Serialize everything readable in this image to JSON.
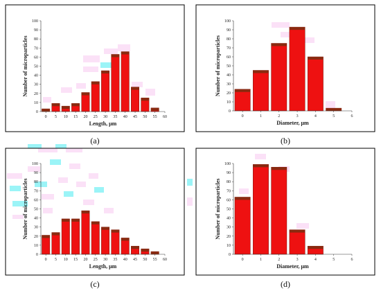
{
  "panel_tags": [
    "(a)",
    "(b)",
    "(c)",
    "(d)"
  ],
  "colors": {
    "bar_fill": "#ee1111",
    "bar_top": "#8a2a10",
    "frame": "#000000",
    "artifact_pink": "#f7c8f0",
    "artifact_cyan": "#22e6ee"
  },
  "chart_data": [
    {
      "type": "bar",
      "title": "",
      "xlabel": "Length, μm",
      "ylabel": "Number of microparticles",
      "x_ticks": [
        "0",
        "5",
        "10",
        "15",
        "20",
        "25",
        "30",
        "35",
        "40",
        "45",
        "50",
        "55",
        "60"
      ],
      "xlim": [
        -2.5,
        60
      ],
      "y_ticks": [
        "0",
        "10",
        "20",
        "30",
        "40",
        "50",
        "60",
        "70",
        "80",
        "90",
        "100"
      ],
      "ylim": [
        0,
        100
      ],
      "bar_width": 4,
      "x": [
        0,
        5,
        10,
        15,
        20,
        25,
        30,
        35,
        40,
        45,
        50,
        55
      ],
      "values": [
        3,
        9,
        6,
        9,
        21,
        33,
        45,
        63,
        66,
        27,
        15,
        4
      ],
      "grid": false
    },
    {
      "type": "bar",
      "title": "",
      "xlabel": "Diameter, μm",
      "ylabel": "Number of microparticles",
      "x_ticks": [
        "0",
        "1",
        "2",
        "3",
        "4",
        "5",
        "6"
      ],
      "xlim": [
        -0.5,
        6
      ],
      "y_ticks": [
        "0",
        "10",
        "20",
        "30",
        "40",
        "50",
        "60",
        "70",
        "80",
        "90",
        "100"
      ],
      "ylim": [
        0,
        100
      ],
      "bar_width": 0.85,
      "x": [
        0,
        1,
        2,
        3,
        4,
        5
      ],
      "values": [
        24,
        45,
        75,
        93,
        60,
        3
      ],
      "grid": false
    },
    {
      "type": "bar",
      "title": "",
      "xlabel": "Length, μm",
      "ylabel": "Number of microparticles",
      "x_ticks": [
        "0",
        "5",
        "10",
        "15",
        "20",
        "25",
        "30",
        "35",
        "40",
        "45",
        "50",
        "55",
        "60"
      ],
      "xlim": [
        -2.5,
        60
      ],
      "y_ticks": [
        "0",
        "10",
        "20",
        "30",
        "40",
        "50",
        "60",
        "70",
        "80",
        "90",
        "100"
      ],
      "ylim": [
        0,
        100
      ],
      "bar_width": 4,
      "x": [
        0,
        5,
        10,
        15,
        20,
        25,
        30,
        35,
        40,
        45,
        50,
        55
      ],
      "values": [
        21,
        24,
        39,
        39,
        48,
        36,
        30,
        27,
        18,
        9,
        6,
        3
      ],
      "grid": false
    },
    {
      "type": "bar",
      "title": "",
      "xlabel": "Diameter, μm",
      "ylabel": "Number of microparticles",
      "x_ticks": [
        "0",
        "1",
        "2",
        "3",
        "4",
        "5",
        "6"
      ],
      "xlim": [
        -0.5,
        6
      ],
      "y_ticks": [
        "0",
        "10",
        "20",
        "30",
        "40",
        "50",
        "60",
        "70",
        "80",
        "90",
        "100"
      ],
      "ylim": [
        0,
        100
      ],
      "bar_width": 0.85,
      "x": [
        0,
        1,
        2,
        3,
        4
      ],
      "values": [
        63,
        99,
        96,
        27,
        9
      ],
      "grid": false
    }
  ]
}
